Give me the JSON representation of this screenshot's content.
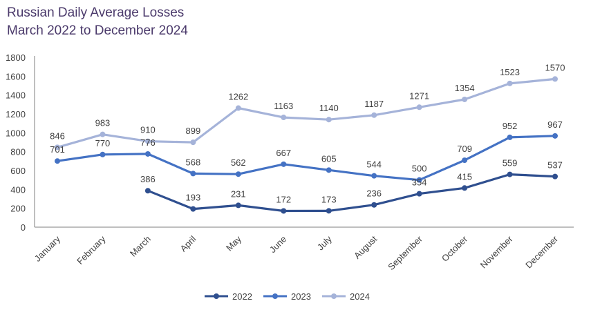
{
  "chart_data": {
    "type": "line",
    "title": "Russian Daily Average Losses",
    "subtitle": "March 2022 to December 2024",
    "categories": [
      "January",
      "February",
      "March",
      "April",
      "May",
      "June",
      "July",
      "August",
      "September",
      "October",
      "November",
      "December"
    ],
    "ylim": [
      0,
      1800
    ],
    "yticks": [
      0,
      200,
      400,
      600,
      800,
      1000,
      1200,
      1400,
      1600,
      1800
    ],
    "grid": false,
    "legend": "bottom",
    "series": [
      {
        "name": "2022",
        "color": "#2f4f8f",
        "values": [
          null,
          null,
          386,
          193,
          231,
          172,
          173,
          236,
          354,
          415,
          559,
          537
        ]
      },
      {
        "name": "2023",
        "color": "#4472c4",
        "values": [
          701,
          770,
          776,
          568,
          562,
          667,
          605,
          544,
          500,
          709,
          952,
          967
        ]
      },
      {
        "name": "2024",
        "color": "#a5b3d9",
        "values": [
          846,
          983,
          910,
          899,
          1262,
          1163,
          1140,
          1187,
          1271,
          1354,
          1523,
          1570
        ]
      }
    ]
  }
}
